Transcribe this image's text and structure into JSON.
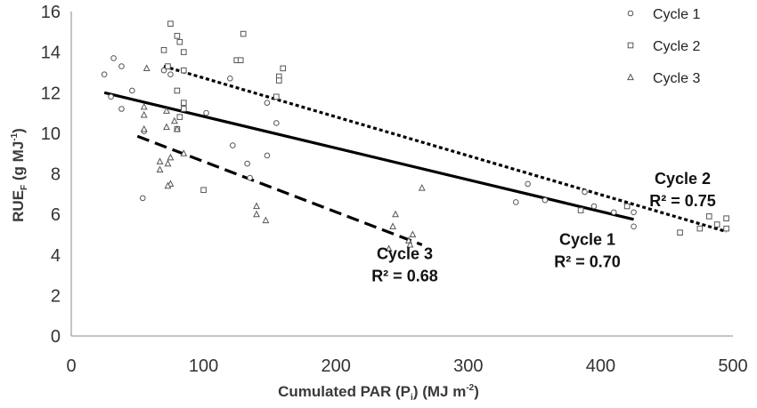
{
  "chart_data": {
    "type": "scatter",
    "xlabel": {
      "main": "Cumulated PAR (P",
      "sub": "i",
      "tail": ") (MJ m",
      "sup": "-2",
      "end": ")"
    },
    "ylabel": {
      "main": "RUE",
      "sub": "F",
      "tail": " (g MJ",
      "sup": "-1",
      "end": ")"
    },
    "xlim": [
      0,
      500
    ],
    "ylim": [
      0,
      16
    ],
    "xticks": [
      0,
      100,
      200,
      300,
      400,
      500
    ],
    "yticks": [
      0,
      2,
      4,
      6,
      8,
      10,
      12,
      14,
      16
    ],
    "grid": false,
    "legend_position": "top-right",
    "series": [
      {
        "name": "Cycle 1",
        "marker": "circle",
        "points": [
          [
            25,
            12.9
          ],
          [
            32,
            13.7
          ],
          [
            38,
            13.3
          ],
          [
            46,
            12.1
          ],
          [
            30,
            11.8
          ],
          [
            38,
            11.2
          ],
          [
            55,
            10.1
          ],
          [
            70,
            13.1
          ],
          [
            75,
            12.9
          ],
          [
            120,
            12.7
          ],
          [
            102,
            11.0
          ],
          [
            122,
            9.4
          ],
          [
            148,
            11.5
          ],
          [
            155,
            10.5
          ],
          [
            133,
            8.5
          ],
          [
            148,
            8.9
          ],
          [
            135,
            7.8
          ],
          [
            54,
            6.8
          ],
          [
            345,
            7.5
          ],
          [
            336,
            6.6
          ],
          [
            358,
            6.7
          ],
          [
            388,
            7.1
          ],
          [
            395,
            6.4
          ],
          [
            410,
            6.1
          ],
          [
            425,
            6.1
          ],
          [
            425,
            5.4
          ]
        ],
        "fit": {
          "x": [
            25,
            425
          ],
          "y": [
            12.0,
            5.75
          ],
          "style": "solid"
        }
      },
      {
        "name": "Cycle 2",
        "marker": "square",
        "points": [
          [
            75,
            15.4
          ],
          [
            80,
            14.8
          ],
          [
            82,
            14.5
          ],
          [
            70,
            14.1
          ],
          [
            85,
            14.0
          ],
          [
            130,
            14.9
          ],
          [
            73,
            13.3
          ],
          [
            85,
            13.1
          ],
          [
            125,
            13.6
          ],
          [
            128,
            13.6
          ],
          [
            160,
            13.2
          ],
          [
            157,
            12.8
          ],
          [
            157,
            12.6
          ],
          [
            80,
            12.1
          ],
          [
            155,
            11.8
          ],
          [
            85,
            11.5
          ],
          [
            85,
            11.2
          ],
          [
            82,
            10.8
          ],
          [
            80,
            10.2
          ],
          [
            100,
            7.2
          ],
          [
            385,
            6.2
          ],
          [
            420,
            6.4
          ],
          [
            460,
            5.1
          ],
          [
            475,
            5.3
          ],
          [
            482,
            5.9
          ],
          [
            488,
            5.5
          ],
          [
            495,
            5.8
          ],
          [
            495,
            5.3
          ]
        ],
        "fit": {
          "x": [
            70,
            495
          ],
          "y": [
            13.3,
            5.15
          ],
          "style": "dotted"
        }
      },
      {
        "name": "Cycle 3",
        "marker": "triangle",
        "points": [
          [
            57,
            13.2
          ],
          [
            55,
            11.3
          ],
          [
            55,
            10.9
          ],
          [
            72,
            11.1
          ],
          [
            72,
            10.3
          ],
          [
            78,
            10.6
          ],
          [
            55,
            10.2
          ],
          [
            80,
            10.2
          ],
          [
            85,
            9.0
          ],
          [
            67,
            8.6
          ],
          [
            73,
            8.5
          ],
          [
            67,
            8.2
          ],
          [
            75,
            8.8
          ],
          [
            75,
            7.5
          ],
          [
            73,
            7.4
          ],
          [
            140,
            6.4
          ],
          [
            140,
            6.0
          ],
          [
            147,
            5.7
          ],
          [
            245,
            6.0
          ],
          [
            243,
            5.4
          ],
          [
            240,
            4.3
          ],
          [
            255,
            4.7
          ],
          [
            256,
            4.5
          ],
          [
            258,
            5.0
          ],
          [
            265,
            7.3
          ]
        ],
        "fit": {
          "x": [
            50,
            265
          ],
          "y": [
            9.85,
            4.5
          ],
          "style": "dashed"
        }
      }
    ],
    "annotations": [
      {
        "lines": [
          "Cycle 1",
          "R² = 0.70"
        ],
        "at": [
          390,
          4.5
        ]
      },
      {
        "lines": [
          "Cycle 2",
          "R² = 0.75"
        ],
        "at": [
          462,
          7.5
        ]
      },
      {
        "lines": [
          "Cycle 3",
          "R² = 0.68"
        ],
        "at": [
          252,
          3.8
        ]
      }
    ]
  }
}
